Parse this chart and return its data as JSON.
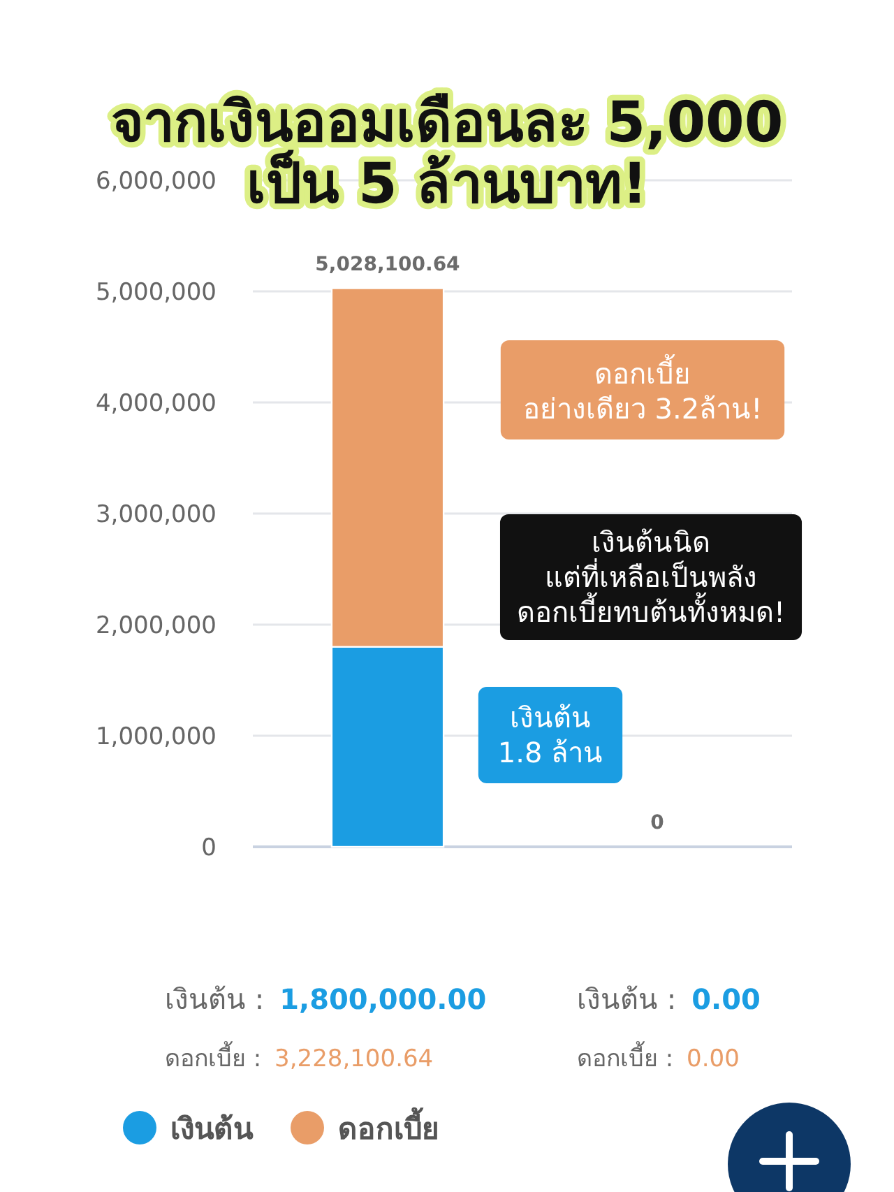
{
  "chart_data": {
    "type": "bar",
    "title": "จากเงินออมเดือนละ 5,000\nเป็น 5 ล้านบาท!",
    "categories": [
      null,
      null
    ],
    "series": [
      {
        "name": "เงินต้น",
        "color": "#1b9de2",
        "values": [
          1800000,
          0
        ],
        "value_labels": [
          "เงินต้น : 1,800,000.00",
          "เงินต้น : 0.00"
        ]
      },
      {
        "name": "ดอกเบี้ย",
        "color": "#e99d68",
        "values": [
          3228100.64,
          0
        ],
        "value_labels": [
          "ดอกเบี้ย : 3,228,100.64",
          "ดอกเบี้ย : 0.00"
        ]
      }
    ],
    "stacked": true,
    "totals": [
      "5,028,100.64",
      "0"
    ],
    "ylim": [
      0,
      6000000
    ],
    "yticks": [
      0,
      {
        "value": 1000000,
        "label": "1,000,000"
      },
      {
        "value": 2000000,
        "label": "2,000,000"
      },
      {
        "value": 3000000,
        "label": "3,000,000"
      },
      {
        "value": 4000000,
        "label": "4,000,000"
      },
      {
        "value": 5000000,
        "label": "5,000,000"
      },
      {
        "value": 6000000,
        "label": "6,000,000"
      }
    ],
    "grid": "y",
    "legend": "bottom",
    "annotations": [
      "ดอกเบี้ย\nอย่างเดียว 3.2ล้าน!",
      "เงินต้นนิด\nแต่ที่เหลือเป็นพลัง\nดอกเบี้ยทบต้นทั้งหมด!",
      "เงินต้น\n1.8 ล้าน"
    ]
  }
}
